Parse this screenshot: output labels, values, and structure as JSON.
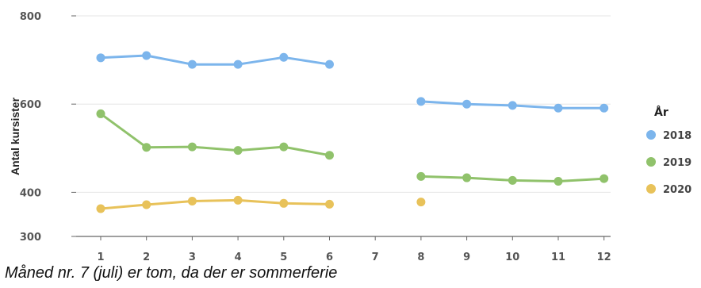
{
  "chart_data": {
    "type": "line",
    "ylabel": "Antal kursister",
    "xlabel": "",
    "caption": "Måned nr. 7 (juli) er tom, da der er sommerferie",
    "x_ticks": [
      "1",
      "2",
      "3",
      "4",
      "5",
      "6",
      "7",
      "8",
      "9",
      "10",
      "11",
      "12"
    ],
    "y_ticks": [
      300,
      400,
      600,
      800
    ],
    "ylim": [
      300,
      800
    ],
    "grid": true,
    "legend": {
      "title": "År",
      "position": "right"
    },
    "series": [
      {
        "name": "2018",
        "color": "#7cb5ec",
        "values": [
          705,
          710,
          690,
          690,
          706,
          690,
          null,
          606,
          600,
          597,
          591,
          591
        ]
      },
      {
        "name": "2019",
        "color": "#90c26b",
        "values": [
          578,
          502,
          503,
          495,
          503,
          484,
          null,
          436,
          433,
          427,
          425,
          431
        ]
      },
      {
        "name": "2020",
        "color": "#e8c25a",
        "values": [
          363,
          372,
          380,
          382,
          375,
          373,
          null,
          378,
          null,
          null,
          null,
          null
        ]
      }
    ]
  }
}
